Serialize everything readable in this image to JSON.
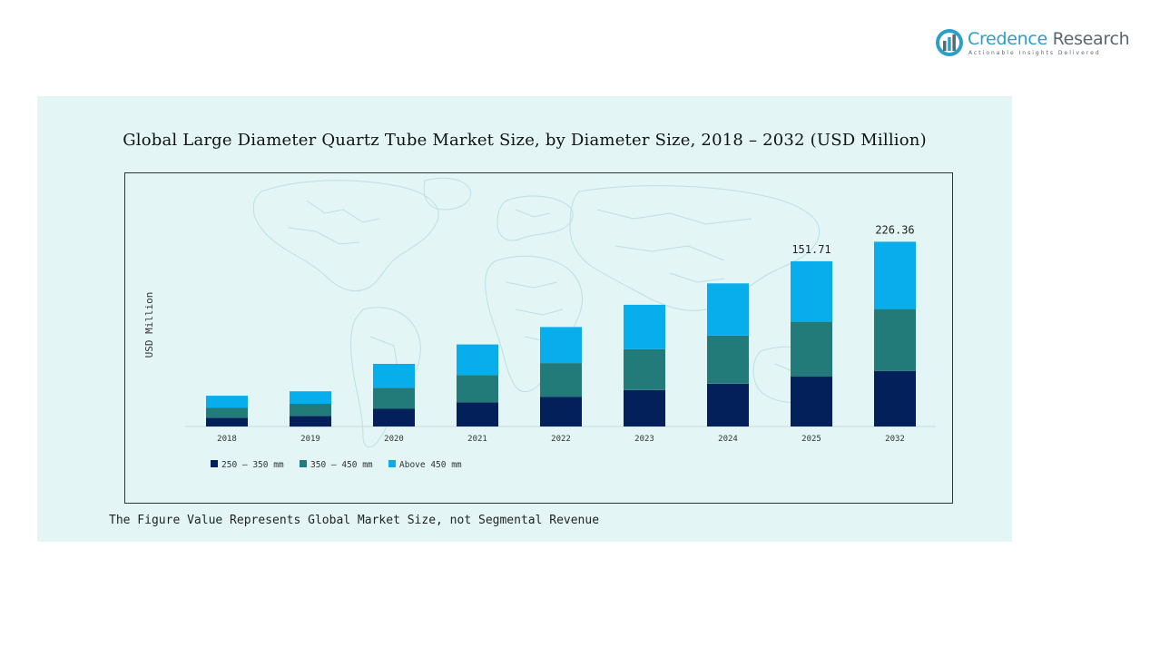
{
  "logo": {
    "name_part1": "Credence",
    "name_part2": " Research",
    "tagline": "Actionable Insights Delivered"
  },
  "footnote": "The Figure Value Represents Global Market Size, not Segmental Revenue",
  "colors": {
    "panel_background": "#e3f5f5",
    "series_250_350": "#03205a",
    "series_350_450": "#227a79",
    "series_above_450": "#08aeec"
  },
  "chart_data": {
    "type": "bar",
    "stacked": true,
    "title": "Global Large Diameter Quartz Tube Market Size, by Diameter Size, 2018 – 2032 (USD Million)",
    "xlabel": "",
    "ylabel": "USD Million",
    "categories": [
      "2018",
      "2019",
      "2020",
      "2021",
      "2022",
      "2023",
      "2024",
      "2025",
      "2032"
    ],
    "series": [
      {
        "name": "250 – 350 mm",
        "color": "#03205a",
        "values": [
          6.9,
          8.5,
          14.1,
          19.3,
          23.7,
          29.1,
          34.1,
          39.8,
          44.2
        ]
      },
      {
        "name": "350 – 450 mm",
        "color": "#227a79",
        "values": [
          7.9,
          9.6,
          16.7,
          21.8,
          26.9,
          32.5,
          38.3,
          43.7,
          49.4
        ]
      },
      {
        "name": "Above 450 mm",
        "color": "#08aeec",
        "values": [
          9.7,
          10.0,
          19.1,
          24.3,
          28.7,
          35.4,
          41.7,
          48.2,
          53.7
        ]
      }
    ],
    "total_labels": [
      {
        "category": "2025",
        "text": "151.71"
      },
      {
        "category": "2032",
        "text": "226.36"
      }
    ],
    "totals": {
      "2025": 151.71,
      "2032": 226.36
    },
    "ylim": [
      0,
      170
    ],
    "legend_position": "bottom-left",
    "grid": false
  }
}
